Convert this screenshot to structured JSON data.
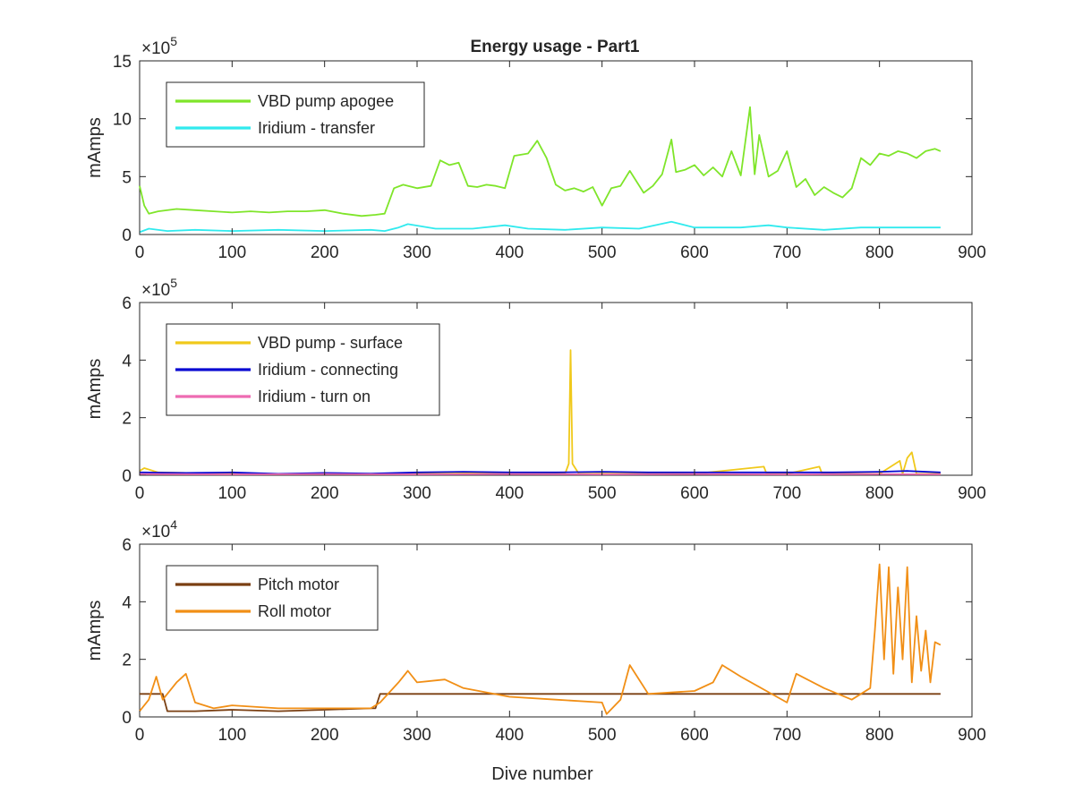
{
  "figure_title": "Energy usage - Part1",
  "chart_data": [
    {
      "type": "line",
      "title": "Energy usage - Part1",
      "xlabel": "",
      "ylabel": "mAmps",
      "xlim": [
        0,
        900
      ],
      "ylim": [
        0,
        15
      ],
      "y_exponent_label": "×10^5",
      "y_exponent": "5",
      "x_ticks": [
        "0",
        "100",
        "200",
        "300",
        "400",
        "500",
        "600",
        "700",
        "800",
        "900"
      ],
      "y_ticks": [
        "0",
        "5",
        "10",
        "15"
      ],
      "legend_position": "top-left",
      "series": [
        {
          "name": "VBD pump apogee",
          "color": "#7fe52a",
          "x": [
            0,
            5,
            10,
            20,
            40,
            60,
            80,
            100,
            120,
            140,
            160,
            180,
            200,
            220,
            240,
            255,
            265,
            275,
            285,
            300,
            315,
            325,
            335,
            345,
            355,
            365,
            375,
            385,
            395,
            405,
            420,
            430,
            440,
            450,
            460,
            470,
            480,
            490,
            500,
            510,
            520,
            530,
            545,
            555,
            565,
            575,
            580,
            590,
            600,
            610,
            620,
            630,
            640,
            650,
            660,
            665,
            670,
            680,
            690,
            700,
            710,
            720,
            730,
            740,
            750,
            760,
            770,
            780,
            790,
            800,
            810,
            820,
            830,
            840,
            850,
            860,
            866
          ],
          "values": [
            4.2,
            2.5,
            1.8,
            2.0,
            2.2,
            2.1,
            2.0,
            1.9,
            2.0,
            1.9,
            2.0,
            2.0,
            2.1,
            1.8,
            1.6,
            1.7,
            1.8,
            4.0,
            4.3,
            4.0,
            4.2,
            6.4,
            6.0,
            6.2,
            4.2,
            4.1,
            4.3,
            4.2,
            4.0,
            6.8,
            7.0,
            8.1,
            6.6,
            4.3,
            3.8,
            4.0,
            3.7,
            4.1,
            2.5,
            4.0,
            4.2,
            5.5,
            3.6,
            4.2,
            5.2,
            8.2,
            5.4,
            5.6,
            6.0,
            5.1,
            5.8,
            5.0,
            7.2,
            5.1,
            11.0,
            5.2,
            8.6,
            5.0,
            5.5,
            7.2,
            4.1,
            4.8,
            3.4,
            4.1,
            3.6,
            3.2,
            4.0,
            6.6,
            6.0,
            7.0,
            6.8,
            7.2,
            7.0,
            6.6,
            7.2,
            7.4,
            7.2
          ]
        },
        {
          "name": "Iridium - transfer",
          "color": "#30eaee",
          "x": [
            0,
            10,
            30,
            60,
            100,
            150,
            200,
            250,
            265,
            280,
            290,
            320,
            360,
            395,
            420,
            460,
            500,
            540,
            575,
            600,
            650,
            680,
            700,
            740,
            780,
            820,
            866
          ],
          "values": [
            0.2,
            0.5,
            0.3,
            0.4,
            0.3,
            0.4,
            0.3,
            0.4,
            0.3,
            0.6,
            0.9,
            0.5,
            0.5,
            0.8,
            0.5,
            0.4,
            0.6,
            0.5,
            1.1,
            0.6,
            0.6,
            0.8,
            0.6,
            0.4,
            0.6,
            0.6,
            0.6
          ]
        }
      ]
    },
    {
      "type": "line",
      "title": "",
      "xlabel": "",
      "ylabel": "mAmps",
      "xlim": [
        0,
        900
      ],
      "ylim": [
        0,
        6
      ],
      "y_exponent_label": "×10^5",
      "y_exponent": "5",
      "x_ticks": [
        "0",
        "100",
        "200",
        "300",
        "400",
        "500",
        "600",
        "700",
        "800",
        "900"
      ],
      "y_ticks": [
        "0",
        "2",
        "4",
        "6"
      ],
      "legend_position": "top-left",
      "series": [
        {
          "name": "VBD pump - surface",
          "color": "#f0c91b",
          "x": [
            0,
            5,
            20,
            100,
            200,
            300,
            400,
            460,
            464,
            466,
            468,
            475,
            500,
            600,
            675,
            678,
            700,
            735,
            738,
            800,
            822,
            825,
            830,
            835,
            840,
            866
          ],
          "values": [
            0.15,
            0.25,
            0.1,
            0.05,
            0.05,
            0.05,
            0.08,
            0.05,
            0.4,
            4.35,
            0.4,
            0.05,
            0.06,
            0.05,
            0.3,
            0.05,
            0.05,
            0.3,
            0.05,
            0.05,
            0.5,
            0.05,
            0.6,
            0.8,
            0.05,
            0.05
          ]
        },
        {
          "name": "Iridium - connecting",
          "color": "#0a0ad2",
          "x": [
            0,
            50,
            100,
            150,
            200,
            250,
            300,
            350,
            400,
            450,
            500,
            550,
            600,
            650,
            700,
            750,
            800,
            830,
            866
          ],
          "values": [
            0.1,
            0.08,
            0.1,
            0.05,
            0.08,
            0.06,
            0.1,
            0.12,
            0.1,
            0.1,
            0.12,
            0.1,
            0.1,
            0.1,
            0.1,
            0.1,
            0.12,
            0.15,
            0.1
          ]
        },
        {
          "name": "Iridium - turn on",
          "color": "#ee6bb2",
          "x": [
            0,
            100,
            200,
            300,
            400,
            500,
            600,
            700,
            800,
            866
          ],
          "values": [
            0.04,
            0.03,
            0.04,
            0.03,
            0.04,
            0.03,
            0.04,
            0.03,
            0.04,
            0.03
          ]
        }
      ]
    },
    {
      "type": "line",
      "title": "",
      "xlabel": "Dive number",
      "ylabel": "mAmps",
      "xlim": [
        0,
        900
      ],
      "ylim": [
        0,
        6
      ],
      "y_exponent_label": "×10^4",
      "y_exponent": "4",
      "x_ticks": [
        "0",
        "100",
        "200",
        "300",
        "400",
        "500",
        "600",
        "700",
        "800",
        "900"
      ],
      "y_ticks": [
        "0",
        "2",
        "4",
        "6"
      ],
      "legend_position": "top-left",
      "series": [
        {
          "name": "Pitch motor",
          "color": "#7a3f12",
          "x": [
            0,
            25,
            30,
            60,
            100,
            150,
            200,
            250,
            255,
            260,
            265,
            300,
            400,
            500,
            600,
            700,
            800,
            866
          ],
          "values": [
            0.8,
            0.8,
            0.2,
            0.2,
            0.25,
            0.2,
            0.25,
            0.3,
            0.3,
            0.8,
            0.8,
            0.8,
            0.8,
            0.8,
            0.8,
            0.8,
            0.8,
            0.8
          ]
        },
        {
          "name": "Roll motor",
          "color": "#f18f16",
          "x": [
            0,
            10,
            18,
            25,
            40,
            50,
            60,
            80,
            100,
            150,
            200,
            250,
            260,
            280,
            290,
            300,
            330,
            350,
            400,
            450,
            500,
            505,
            520,
            530,
            550,
            600,
            620,
            630,
            650,
            700,
            710,
            740,
            770,
            790,
            795,
            800,
            805,
            810,
            815,
            820,
            825,
            830,
            835,
            840,
            845,
            850,
            855,
            860,
            866
          ],
          "values": [
            0.2,
            0.6,
            1.4,
            0.6,
            1.2,
            1.5,
            0.5,
            0.3,
            0.4,
            0.3,
            0.3,
            0.3,
            0.5,
            1.2,
            1.6,
            1.2,
            1.3,
            1.0,
            0.7,
            0.6,
            0.5,
            0.1,
            0.6,
            1.8,
            0.8,
            0.9,
            1.2,
            1.8,
            1.4,
            0.5,
            1.5,
            1.0,
            0.6,
            1.0,
            3.0,
            5.3,
            2.0,
            5.2,
            1.5,
            4.5,
            2.0,
            5.2,
            1.2,
            3.5,
            1.6,
            3.0,
            1.2,
            2.6,
            2.5
          ]
        }
      ]
    }
  ]
}
